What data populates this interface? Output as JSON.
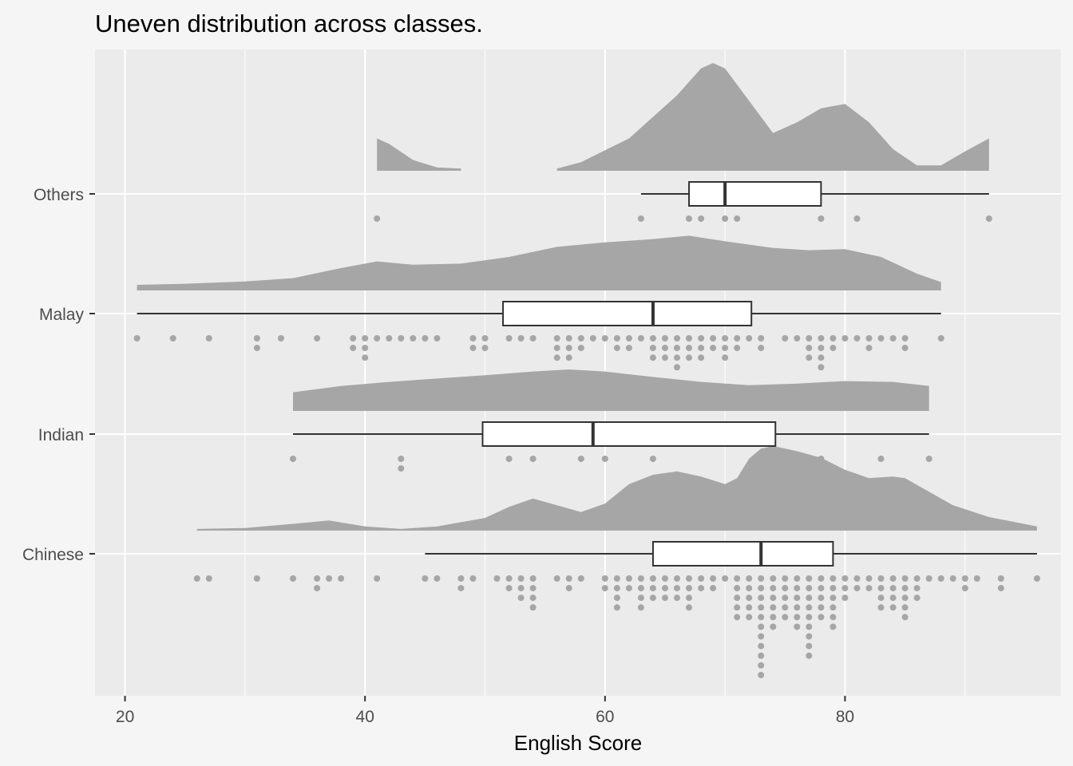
{
  "chart_data": {
    "type": "raincloud",
    "title": "Uneven distribution across classes.",
    "xlabel": "English Score",
    "ylabel": "",
    "xlim": [
      17.5,
      98
    ],
    "x_ticks": [
      20,
      40,
      60,
      80
    ],
    "x_minor_ticks": [
      30,
      50,
      70,
      90
    ],
    "categories": [
      "Chinese",
      "Indian",
      "Malay",
      "Others"
    ],
    "grid": true,
    "colors": {
      "background": "#f5f5f5",
      "panel": "#ebebeb",
      "grid": "#ffffff",
      "density_fill": "#a6a6a6",
      "dot": "#a6a6a6",
      "box_fill": "#ffffff",
      "box_line": "#333333"
    },
    "groups": [
      {
        "name": "Chinese",
        "box": {
          "min": 45,
          "q1": 64,
          "median": 73,
          "q3": 79,
          "max": 96
        },
        "density": [
          [
            26,
            0.02
          ],
          [
            30,
            0.03
          ],
          [
            34,
            0.08
          ],
          [
            37,
            0.12
          ],
          [
            40,
            0.05
          ],
          [
            43,
            0.02
          ],
          [
            46,
            0.05
          ],
          [
            50,
            0.15
          ],
          [
            52,
            0.28
          ],
          [
            54,
            0.38
          ],
          [
            56,
            0.3
          ],
          [
            58,
            0.22
          ],
          [
            60,
            0.32
          ],
          [
            62,
            0.55
          ],
          [
            64,
            0.66
          ],
          [
            66,
            0.7
          ],
          [
            68,
            0.64
          ],
          [
            70,
            0.55
          ],
          [
            71,
            0.62
          ],
          [
            72,
            0.85
          ],
          [
            73,
            0.97
          ],
          [
            74,
            1.0
          ],
          [
            76,
            0.94
          ],
          [
            78,
            0.86
          ],
          [
            80,
            0.72
          ],
          [
            82,
            0.62
          ],
          [
            84,
            0.64
          ],
          [
            85,
            0.62
          ],
          [
            87,
            0.46
          ],
          [
            89,
            0.3
          ],
          [
            92,
            0.16
          ],
          [
            96,
            0.05
          ]
        ],
        "dots": [
          [
            26,
            1
          ],
          [
            27,
            1
          ],
          [
            31,
            1
          ],
          [
            34,
            1
          ],
          [
            36,
            2
          ],
          [
            37,
            1
          ],
          [
            38,
            1
          ],
          [
            41,
            1
          ],
          [
            45,
            1
          ],
          [
            46,
            1
          ],
          [
            48,
            2
          ],
          [
            49,
            1
          ],
          [
            51,
            1
          ],
          [
            52,
            2
          ],
          [
            53,
            3
          ],
          [
            54,
            4
          ],
          [
            56,
            1
          ],
          [
            57,
            2
          ],
          [
            58,
            1
          ],
          [
            60,
            2
          ],
          [
            61,
            4
          ],
          [
            62,
            2
          ],
          [
            63,
            4
          ],
          [
            64,
            3
          ],
          [
            65,
            3
          ],
          [
            66,
            3
          ],
          [
            67,
            4
          ],
          [
            68,
            2
          ],
          [
            69,
            2
          ],
          [
            70,
            1
          ],
          [
            71,
            5
          ],
          [
            72,
            5
          ],
          [
            73,
            11
          ],
          [
            74,
            6
          ],
          [
            75,
            5
          ],
          [
            76,
            6
          ],
          [
            77,
            9
          ],
          [
            78,
            5
          ],
          [
            79,
            6
          ],
          [
            80,
            3
          ],
          [
            81,
            2
          ],
          [
            82,
            2
          ],
          [
            83,
            4
          ],
          [
            84,
            4
          ],
          [
            85,
            5
          ],
          [
            86,
            3
          ],
          [
            87,
            1
          ],
          [
            88,
            1
          ],
          [
            89,
            1
          ],
          [
            90,
            2
          ],
          [
            91,
            1
          ],
          [
            93,
            2
          ],
          [
            96,
            1
          ]
        ]
      },
      {
        "name": "Indian",
        "box": {
          "min": 34,
          "q1": 49.8,
          "median": 59,
          "q3": 74.2,
          "max": 87
        },
        "density": [
          [
            34,
            0.45
          ],
          [
            38,
            0.6
          ],
          [
            42,
            0.7
          ],
          [
            46,
            0.78
          ],
          [
            50,
            0.86
          ],
          [
            54,
            0.95
          ],
          [
            57,
            1.0
          ],
          [
            60,
            0.95
          ],
          [
            64,
            0.82
          ],
          [
            68,
            0.7
          ],
          [
            72,
            0.62
          ],
          [
            76,
            0.66
          ],
          [
            80,
            0.72
          ],
          [
            84,
            0.7
          ],
          [
            87,
            0.6
          ]
        ],
        "dots": [
          [
            34,
            1
          ],
          [
            43,
            2
          ],
          [
            52,
            1
          ],
          [
            54,
            1
          ],
          [
            58,
            1
          ],
          [
            60,
            1
          ],
          [
            64,
            1
          ],
          [
            78,
            1
          ],
          [
            83,
            1
          ],
          [
            87,
            1
          ]
        ]
      },
      {
        "name": "Malay",
        "box": {
          "min": 21,
          "q1": 51.5,
          "median": 64,
          "q3": 72.2,
          "max": 88
        },
        "density": [
          [
            21,
            0.1
          ],
          [
            25,
            0.12
          ],
          [
            30,
            0.16
          ],
          [
            34,
            0.22
          ],
          [
            38,
            0.4
          ],
          [
            41,
            0.52
          ],
          [
            44,
            0.46
          ],
          [
            48,
            0.48
          ],
          [
            52,
            0.6
          ],
          [
            56,
            0.78
          ],
          [
            60,
            0.86
          ],
          [
            64,
            0.92
          ],
          [
            67,
            0.98
          ],
          [
            70,
            0.88
          ],
          [
            74,
            0.76
          ],
          [
            77,
            0.72
          ],
          [
            80,
            0.74
          ],
          [
            83,
            0.6
          ],
          [
            86,
            0.3
          ],
          [
            88,
            0.15
          ]
        ],
        "dots": [
          [
            21,
            1
          ],
          [
            24,
            1
          ],
          [
            27,
            1
          ],
          [
            31,
            2
          ],
          [
            33,
            1
          ],
          [
            36,
            1
          ],
          [
            39,
            2
          ],
          [
            40,
            3
          ],
          [
            41,
            1
          ],
          [
            42,
            1
          ],
          [
            43,
            1
          ],
          [
            44,
            1
          ],
          [
            45,
            1
          ],
          [
            46,
            1
          ],
          [
            49,
            2
          ],
          [
            50,
            2
          ],
          [
            52,
            1
          ],
          [
            53,
            1
          ],
          [
            54,
            1
          ],
          [
            56,
            3
          ],
          [
            57,
            3
          ],
          [
            58,
            2
          ],
          [
            59,
            1
          ],
          [
            60,
            1
          ],
          [
            61,
            2
          ],
          [
            62,
            2
          ],
          [
            63,
            1
          ],
          [
            64,
            3
          ],
          [
            65,
            3
          ],
          [
            66,
            4
          ],
          [
            67,
            3
          ],
          [
            68,
            3
          ],
          [
            69,
            2
          ],
          [
            70,
            3
          ],
          [
            71,
            2
          ],
          [
            72,
            1
          ],
          [
            73,
            2
          ],
          [
            75,
            1
          ],
          [
            76,
            1
          ],
          [
            77,
            3
          ],
          [
            78,
            4
          ],
          [
            79,
            2
          ],
          [
            80,
            1
          ],
          [
            81,
            1
          ],
          [
            82,
            2
          ],
          [
            83,
            1
          ],
          [
            84,
            1
          ],
          [
            85,
            2
          ],
          [
            88,
            1
          ]
        ]
      },
      {
        "name": "Others",
        "box": {
          "min": 63,
          "q1": 67,
          "median": 70,
          "q3": 78,
          "max": 92
        },
        "density": [
          [
            41,
            0.3
          ],
          [
            42,
            0.25
          ],
          [
            44,
            0.1
          ],
          [
            46,
            0.03
          ],
          [
            48,
            0.02
          ],
          [
            56,
            0.02
          ],
          [
            58,
            0.08
          ],
          [
            62,
            0.3
          ],
          [
            66,
            0.7
          ],
          [
            68,
            0.95
          ],
          [
            69,
            1.0
          ],
          [
            70,
            0.95
          ],
          [
            72,
            0.65
          ],
          [
            74,
            0.35
          ],
          [
            76,
            0.45
          ],
          [
            78,
            0.58
          ],
          [
            80,
            0.62
          ],
          [
            82,
            0.45
          ],
          [
            84,
            0.2
          ],
          [
            86,
            0.05
          ],
          [
            88,
            0.05
          ],
          [
            90,
            0.18
          ],
          [
            92,
            0.3
          ]
        ],
        "dots": [
          [
            41,
            1
          ],
          [
            63,
            1
          ],
          [
            67,
            1
          ],
          [
            68,
            1
          ],
          [
            70,
            1
          ],
          [
            71,
            1
          ],
          [
            78,
            1
          ],
          [
            81,
            1
          ],
          [
            92,
            1
          ]
        ]
      }
    ]
  }
}
